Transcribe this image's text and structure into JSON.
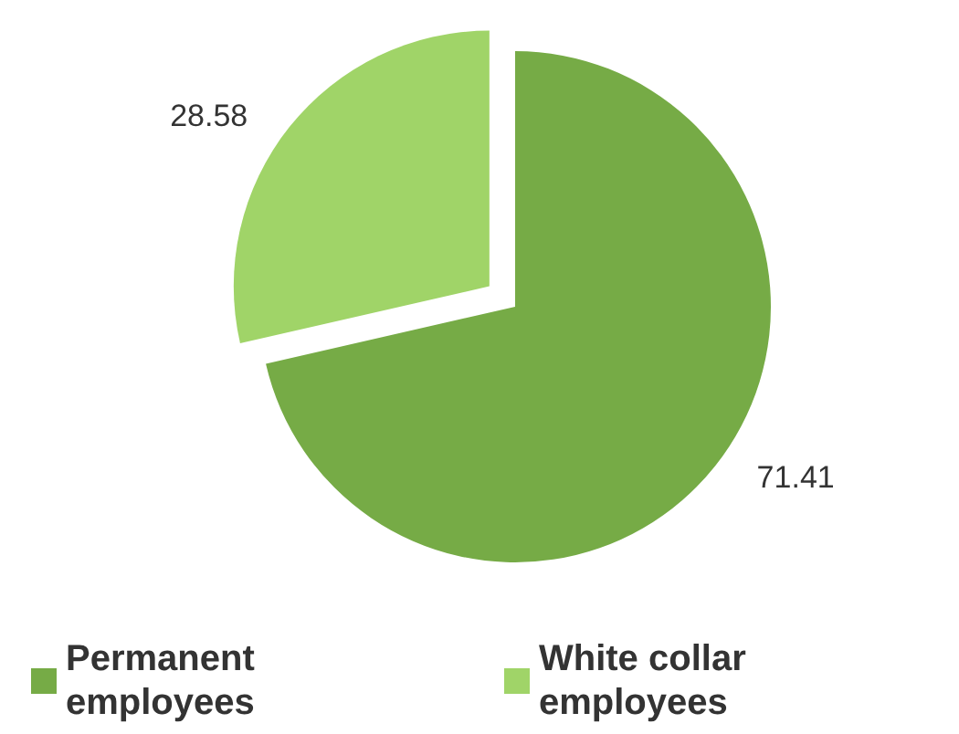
{
  "chart_data": {
    "type": "pie",
    "categories": [
      "Permanent employees",
      "White collar employees"
    ],
    "values": [
      71.41,
      28.58
    ],
    "colors": [
      "#76ab46",
      "#a0d468"
    ],
    "data_labels": true,
    "legend": "bottom"
  }
}
